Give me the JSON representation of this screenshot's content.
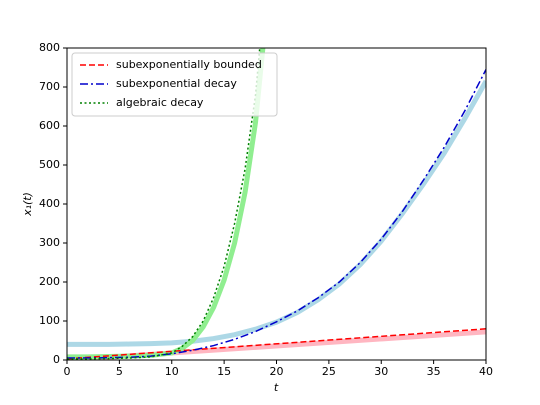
{
  "chart_data": {
    "type": "line",
    "xlabel": "t",
    "ylabel": "x₁(t)",
    "xlim": [
      0,
      40
    ],
    "ylim": [
      0,
      800
    ],
    "xticks": [
      0,
      5,
      10,
      15,
      20,
      25,
      30,
      35,
      40
    ],
    "yticks": [
      0,
      100,
      200,
      300,
      400,
      500,
      600,
      700,
      800
    ],
    "legend": "upper left",
    "series": [
      {
        "color": "#ffb6c1",
        "style": "solid",
        "width": 5,
        "x": [
          0,
          40
        ],
        "values": [
          0,
          72
        ]
      },
      {
        "color": "#add8e6",
        "style": "solid",
        "width": 5,
        "x": [
          0,
          2,
          4,
          6,
          8,
          10,
          12,
          14,
          16,
          18,
          20,
          22,
          24,
          26,
          28,
          30,
          32,
          34,
          36,
          38,
          40
        ],
        "values": [
          40,
          40,
          40,
          41,
          42,
          44,
          48,
          55,
          65,
          79,
          97,
          122,
          155,
          195,
          245,
          305,
          375,
          450,
          530,
          620,
          715
        ]
      },
      {
        "color": "#90ee90",
        "style": "solid",
        "width": 5,
        "x": [
          0,
          2,
          4,
          6,
          8,
          10,
          11,
          12,
          13,
          14,
          15,
          16,
          17,
          18,
          18.7
        ],
        "values": [
          8,
          8,
          9,
          10,
          12,
          18,
          30,
          50,
          85,
          135,
          205,
          300,
          430,
          610,
          800
        ]
      },
      {
        "name": "subexponentially bounded",
        "color": "#ff0000",
        "style": "dashed",
        "width": 1.5,
        "x": [
          0,
          40
        ],
        "values": [
          3,
          80
        ]
      },
      {
        "name": "subexponential decay",
        "color": "#0000cc",
        "style": "dashdot",
        "width": 1.5,
        "x": [
          0,
          2,
          4,
          6,
          8,
          10,
          12,
          14,
          16,
          18,
          20,
          22,
          24,
          26,
          28,
          30,
          32,
          34,
          36,
          38,
          40
        ],
        "values": [
          5,
          5,
          6,
          7,
          10,
          16,
          25,
          37,
          53,
          73,
          98,
          126,
          160,
          200,
          250,
          310,
          380,
          460,
          545,
          640,
          745
        ]
      },
      {
        "name": "algebraic decay",
        "color": "#008000",
        "style": "dotted",
        "width": 1.5,
        "x": [
          0,
          2,
          4,
          6,
          8,
          10,
          11,
          12,
          13,
          14,
          15,
          16,
          17,
          18,
          18.4
        ],
        "values": [
          3,
          3,
          4,
          5,
          8,
          18,
          35,
          60,
          100,
          160,
          240,
          350,
          490,
          680,
          800
        ]
      }
    ]
  }
}
